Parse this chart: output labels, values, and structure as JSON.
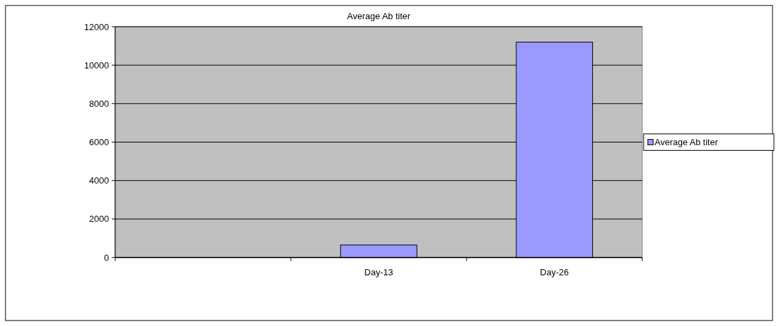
{
  "chart_data": {
    "type": "bar",
    "title": "Average Ab titer",
    "categories": [
      null,
      "Day-13",
      "Day-26"
    ],
    "series": [
      {
        "name": "Average Ab titer",
        "color": "#9999ff",
        "values": [
          null,
          650,
          11200
        ]
      }
    ],
    "ylim": [
      0,
      12000
    ],
    "yticks": [
      0,
      2000,
      4000,
      6000,
      8000,
      10000,
      12000
    ],
    "grid": "y",
    "legend": "right"
  }
}
